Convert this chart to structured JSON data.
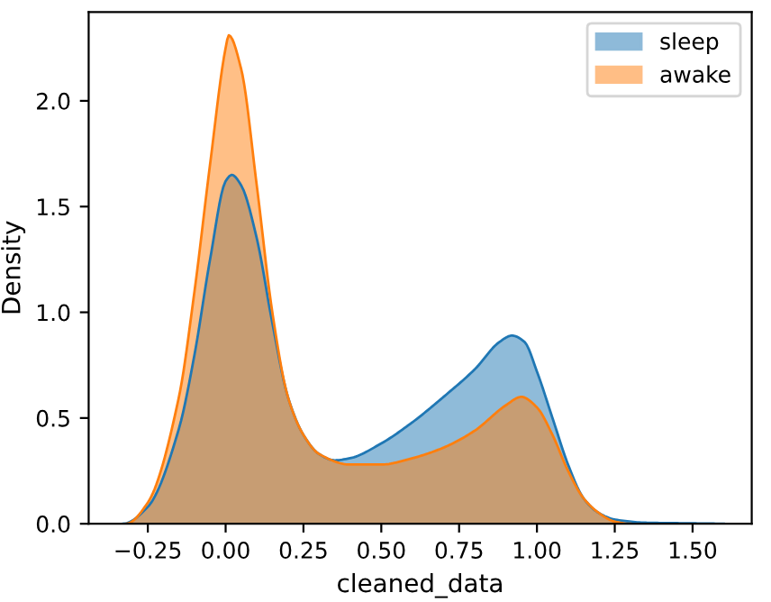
{
  "chart_data": {
    "type": "area",
    "xlabel": "cleaned_data",
    "ylabel": "Density",
    "xlim": [
      -0.44,
      1.69
    ],
    "ylim": [
      0,
      2.42
    ],
    "xticks": [
      {
        "value": -0.25,
        "label": "−0.25"
      },
      {
        "value": 0,
        "label": "0.00"
      },
      {
        "value": 0.25,
        "label": "0.25"
      },
      {
        "value": 0.5,
        "label": "0.50"
      },
      {
        "value": 0.75,
        "label": "0.75"
      },
      {
        "value": 1,
        "label": "1.00"
      },
      {
        "value": 1.25,
        "label": "1.25"
      },
      {
        "value": 1.5,
        "label": "1.50"
      }
    ],
    "yticks": [
      {
        "value": 0,
        "label": "0.0"
      },
      {
        "value": 0.5,
        "label": "0.5"
      },
      {
        "value": 1,
        "label": "1.0"
      },
      {
        "value": 1.5,
        "label": "1.5"
      },
      {
        "value": 2,
        "label": "2.0"
      }
    ],
    "legend": "top right",
    "grid": false,
    "series": [
      {
        "name": "sleep",
        "color": "#1f77b4",
        "x": [
          -0.33,
          -0.25,
          -0.15,
          -0.1,
          -0.05,
          0,
          0.02,
          0.05,
          0.1,
          0.15,
          0.2,
          0.25,
          0.3,
          0.35,
          0.4,
          0.5,
          0.6,
          0.7,
          0.8,
          0.88,
          0.92,
          0.96,
          1.0,
          1.05,
          1.1,
          1.15,
          1.2,
          1.25,
          1.35,
          1.5,
          1.6
        ],
        "values": [
          0,
          0.08,
          0.45,
          0.8,
          1.25,
          1.62,
          1.65,
          1.6,
          1.35,
          0.95,
          0.6,
          0.42,
          0.33,
          0.3,
          0.31,
          0.38,
          0.48,
          0.6,
          0.73,
          0.86,
          0.89,
          0.86,
          0.72,
          0.5,
          0.28,
          0.12,
          0.05,
          0.02,
          0.005,
          0.002,
          0
        ]
      },
      {
        "name": "awake",
        "color": "#ff7f0e",
        "x": [
          -0.32,
          -0.25,
          -0.15,
          -0.1,
          -0.05,
          0,
          0.01,
          0.05,
          0.1,
          0.15,
          0.2,
          0.25,
          0.3,
          0.4,
          0.5,
          0.6,
          0.7,
          0.8,
          0.9,
          0.95,
          1.0,
          1.05,
          1.1,
          1.15,
          1.2,
          1.25,
          1.3
        ],
        "values": [
          0,
          0.1,
          0.6,
          1.1,
          1.7,
          2.25,
          2.31,
          2.15,
          1.6,
          1.0,
          0.6,
          0.42,
          0.33,
          0.28,
          0.28,
          0.31,
          0.36,
          0.44,
          0.56,
          0.6,
          0.55,
          0.42,
          0.25,
          0.12,
          0.05,
          0.01,
          0
        ]
      }
    ]
  }
}
